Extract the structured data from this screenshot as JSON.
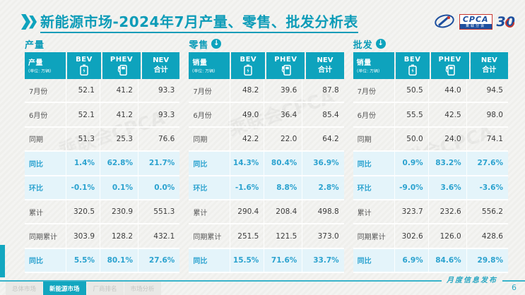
{
  "page": {
    "title": "新能源市场-2024年7月产量、零售、批发分析表",
    "page_number": "6",
    "watermark": "乘联会CPCA",
    "colors": {
      "teal": "#0EA3BD",
      "title_teal": "#0D9CB8",
      "highlight_text": "#2BA2CF",
      "highlight_bg": "#E4F4FA"
    }
  },
  "logos": {
    "cpca_label": "CPCA",
    "cpca_sub": "乘联分会",
    "anniversary": "30"
  },
  "tables": [
    {
      "section_title": "产量",
      "has_arrow": false,
      "header": {
        "label": "产量",
        "unit": "(单位: 万辆)",
        "bev": "BEV",
        "phev": "PHEV",
        "nev_line1": "NEV",
        "nev_line2": "合计"
      },
      "rows": [
        {
          "label": "7月份",
          "bev": "52.1",
          "phev": "41.2",
          "nev": "93.3",
          "highlight": false
        },
        {
          "label": "6月份",
          "bev": "52.1",
          "phev": "41.2",
          "nev": "93.3",
          "highlight": false
        },
        {
          "label": "同期",
          "bev": "51.3",
          "phev": "25.3",
          "nev": "76.6",
          "highlight": false
        },
        {
          "label": "同比",
          "bev": "1.4%",
          "phev": "62.8%",
          "nev": "21.7%",
          "highlight": true
        },
        {
          "label": "环比",
          "bev": "-0.1%",
          "phev": "0.1%",
          "nev": "0.0%",
          "highlight": true
        },
        {
          "label": "累计",
          "bev": "320.5",
          "phev": "230.9",
          "nev": "551.3",
          "highlight": false
        },
        {
          "label": "同期累计",
          "bev": "303.9",
          "phev": "128.2",
          "nev": "432.1",
          "highlight": false
        },
        {
          "label": "同比",
          "bev": "5.5%",
          "phev": "80.1%",
          "nev": "27.6%",
          "highlight": true
        }
      ]
    },
    {
      "section_title": "零售",
      "has_arrow": true,
      "header": {
        "label": "销量",
        "unit": "(单位: 万辆)",
        "bev": "BEV",
        "phev": "PHEV",
        "nev_line1": "NEV",
        "nev_line2": "合计"
      },
      "rows": [
        {
          "label": "7月份",
          "bev": "48.2",
          "phev": "39.6",
          "nev": "87.8",
          "highlight": false
        },
        {
          "label": "6月份",
          "bev": "49.0",
          "phev": "36.4",
          "nev": "85.4",
          "highlight": false
        },
        {
          "label": "同期",
          "bev": "42.2",
          "phev": "22.0",
          "nev": "64.2",
          "highlight": false
        },
        {
          "label": "同比",
          "bev": "14.3%",
          "phev": "80.4%",
          "nev": "36.9%",
          "highlight": true
        },
        {
          "label": "环比",
          "bev": "-1.6%",
          "phev": "8.8%",
          "nev": "2.8%",
          "highlight": true
        },
        {
          "label": "累计",
          "bev": "290.4",
          "phev": "208.4",
          "nev": "498.8",
          "highlight": false
        },
        {
          "label": "同期累计",
          "bev": "251.5",
          "phev": "121.5",
          "nev": "373.0",
          "highlight": false
        },
        {
          "label": "同比",
          "bev": "15.5%",
          "phev": "71.6%",
          "nev": "33.7%",
          "highlight": true
        }
      ]
    },
    {
      "section_title": "批发",
      "has_arrow": true,
      "header": {
        "label": "销量",
        "unit": "(单位: 万辆)",
        "bev": "BEV",
        "phev": "PHEV",
        "nev_line1": "NEV",
        "nev_line2": "合计"
      },
      "rows": [
        {
          "label": "7月份",
          "bev": "50.5",
          "phev": "44.0",
          "nev": "94.5",
          "highlight": false
        },
        {
          "label": "6月份",
          "bev": "55.5",
          "phev": "42.5",
          "nev": "98.0",
          "highlight": false
        },
        {
          "label": "同期",
          "bev": "50.0",
          "phev": "24.0",
          "nev": "74.1",
          "highlight": false
        },
        {
          "label": "同比",
          "bev": "0.9%",
          "phev": "83.2%",
          "nev": "27.6%",
          "highlight": true
        },
        {
          "label": "环比",
          "bev": "-9.0%",
          "phev": "3.6%",
          "nev": "-3.6%",
          "highlight": true
        },
        {
          "label": "累计",
          "bev": "323.7",
          "phev": "232.6",
          "nev": "556.2",
          "highlight": false
        },
        {
          "label": "同期累计",
          "bev": "302.6",
          "phev": "126.0",
          "nev": "428.6",
          "highlight": false
        },
        {
          "label": "同比",
          "bev": "6.9%",
          "phev": "84.6%",
          "nev": "29.8%",
          "highlight": true
        }
      ]
    }
  ],
  "footer": {
    "ribbon_text": "月度信息发布",
    "tabs": [
      {
        "label": "总体市场",
        "active": false
      },
      {
        "label": "新能源市场",
        "active": true
      },
      {
        "label": "厂商排名",
        "active": false
      },
      {
        "label": "市场分析",
        "active": false
      }
    ]
  },
  "icons": {
    "chevrons": "double-right-chevron",
    "arrow_badge": "↓",
    "bev_icon": "battery",
    "phev_icon": "charging-pump"
  }
}
